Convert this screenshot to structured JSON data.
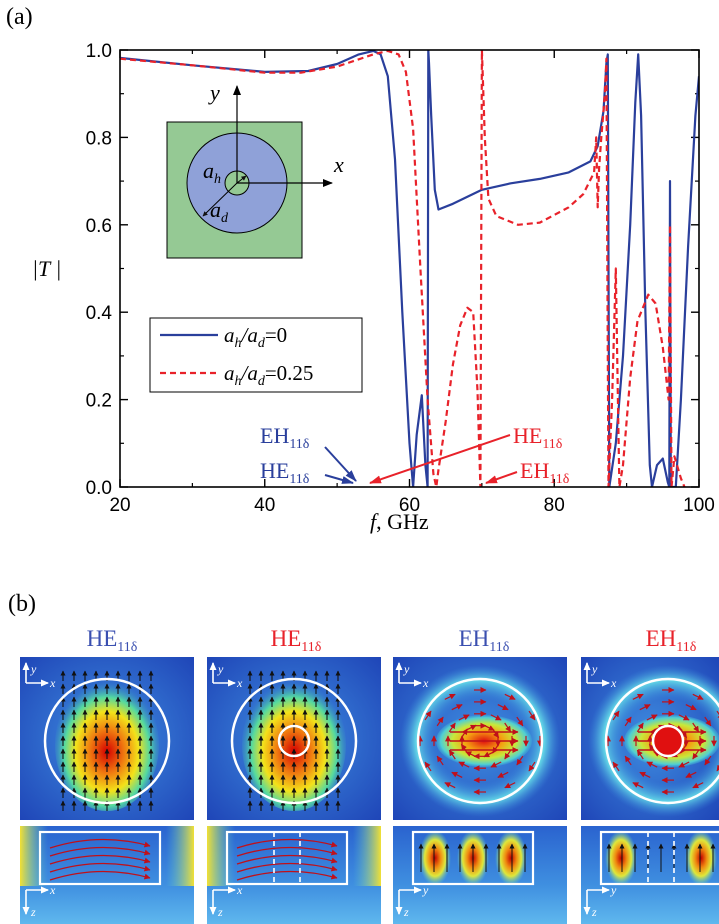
{
  "panel_a": {
    "label": "(a)",
    "chart_data": {
      "type": "line",
      "xlabel_italic": "f",
      "xlabel_rest": ", GHz",
      "ylabel": "|T |",
      "xlim": [
        20,
        100
      ],
      "ylim": [
        0,
        1.0
      ],
      "x_ticks": [
        "20",
        "40",
        "60",
        "80",
        "100"
      ],
      "y_ticks": [
        "0.0",
        "0.2",
        "0.4",
        "0.6",
        "0.8",
        "1.0"
      ],
      "series": [
        {
          "name": "a_h/a_d=0",
          "color": "#2a3f9c",
          "style": "solid",
          "points": [
            [
              20,
              0.982
            ],
            [
              30,
              0.965
            ],
            [
              40,
              0.95
            ],
            [
              46,
              0.952
            ],
            [
              50,
              0.968
            ],
            [
              53,
              0.99
            ],
            [
              55,
              0.998
            ],
            [
              56,
              0.99
            ],
            [
              57,
              0.94
            ],
            [
              58,
              0.75
            ],
            [
              59,
              0.4
            ],
            [
              60,
              0.1
            ],
            [
              60.5,
              0.0
            ],
            [
              61,
              0.12
            ],
            [
              61.7,
              0.21
            ],
            [
              62.2,
              0.05
            ],
            [
              62.5,
              0.0
            ],
            [
              62.6,
              1.0
            ],
            [
              62.7,
              0.97
            ],
            [
              63.0,
              0.85
            ],
            [
              63.5,
              0.68
            ],
            [
              64,
              0.635
            ],
            [
              66,
              0.648
            ],
            [
              70,
              0.68
            ],
            [
              74,
              0.695
            ],
            [
              78,
              0.705
            ],
            [
              82,
              0.72
            ],
            [
              85,
              0.745
            ],
            [
              86,
              0.78
            ],
            [
              86.8,
              0.86
            ],
            [
              87.2,
              0.97
            ],
            [
              87.4,
              0.99
            ],
            [
              87.5,
              0.5
            ],
            [
              87.6,
              0.0
            ],
            [
              88.5,
              0.1
            ],
            [
              89.5,
              0.3
            ],
            [
              90.5,
              0.6
            ],
            [
              91.2,
              0.88
            ],
            [
              91.6,
              0.99
            ],
            [
              92,
              0.85
            ],
            [
              92.6,
              0.4
            ],
            [
              93.2,
              0.05
            ],
            [
              93.5,
              0.0
            ],
            [
              94.2,
              0.05
            ],
            [
              95,
              0.065
            ],
            [
              95.7,
              0.01
            ],
            [
              95.9,
              0.0
            ],
            [
              96.0,
              0.7
            ],
            [
              96.1,
              0.0
            ],
            [
              96.8,
              0.0
            ],
            [
              97.5,
              0.2
            ],
            [
              98.5,
              0.55
            ],
            [
              99.5,
              0.85
            ],
            [
              100,
              0.94
            ]
          ]
        },
        {
          "name": "a_h/a_d=0.25",
          "color": "#e8222a",
          "style": "dashed",
          "points": [
            [
              20,
              0.98
            ],
            [
              30,
              0.965
            ],
            [
              40,
              0.948
            ],
            [
              45,
              0.948
            ],
            [
              50,
              0.962
            ],
            [
              55,
              0.99
            ],
            [
              57,
              0.998
            ],
            [
              58.5,
              0.99
            ],
            [
              59.5,
              0.95
            ],
            [
              60.5,
              0.82
            ],
            [
              61.5,
              0.5
            ],
            [
              62.5,
              0.2
            ],
            [
              63.3,
              0.03
            ],
            [
              63.7,
              0.0
            ],
            [
              64,
              0.04
            ],
            [
              65,
              0.15
            ],
            [
              66,
              0.28
            ],
            [
              67,
              0.37
            ],
            [
              68,
              0.41
            ],
            [
              68.8,
              0.4
            ],
            [
              69.4,
              0.22
            ],
            [
              69.8,
              0.0
            ],
            [
              70.0,
              1.0
            ],
            [
              70.4,
              0.8
            ],
            [
              70.9,
              0.66
            ],
            [
              72,
              0.62
            ],
            [
              75,
              0.6
            ],
            [
              78,
              0.605
            ],
            [
              82,
              0.64
            ],
            [
              84,
              0.67
            ],
            [
              85.5,
              0.72
            ],
            [
              85.8,
              0.8
            ],
            [
              86.0,
              0.64
            ],
            [
              86.2,
              0.73
            ],
            [
              86.5,
              0.8
            ],
            [
              87.0,
              0.9
            ],
            [
              87.2,
              0.98
            ],
            [
              87.4,
              0.3
            ],
            [
              87.5,
              0.0
            ],
            [
              88.0,
              0.2
            ],
            [
              88.5,
              0.5
            ],
            [
              88.8,
              0.2
            ],
            [
              89.0,
              0.0
            ],
            [
              89.5,
              0.05
            ],
            [
              90.5,
              0.25
            ],
            [
              91.5,
              0.38
            ],
            [
              93,
              0.44
            ],
            [
              94,
              0.42
            ],
            [
              95,
              0.32
            ],
            [
              95.8,
              0.2
            ],
            [
              96.0,
              0.6
            ],
            [
              96.2,
              0.0
            ],
            [
              96.6,
              0.07
            ],
            [
              97.5,
              0.02
            ],
            [
              98,
              0.0
            ]
          ]
        }
      ],
      "legend": {
        "placement": "lower-left",
        "entries": [
          {
            "ratio_a": "a",
            "sub_a": "h",
            "ratio_b": "a",
            "sub_b": "d",
            "value": "=0"
          },
          {
            "ratio_a": "a",
            "sub_a": "h",
            "ratio_b": "a",
            "sub_b": "d",
            "value": "=0.25"
          }
        ]
      },
      "annotations": {
        "blue_top": {
          "main": "EH",
          "sub": "11δ"
        },
        "blue_bottom": {
          "main": "HE",
          "sub": "11δ"
        },
        "red_top": {
          "main": "HE",
          "sub": "11δ"
        },
        "red_bottom": {
          "main": "EH",
          "sub": "11δ"
        }
      },
      "inset": {
        "x_axis": "x",
        "y_axis": "y",
        "r_inner": {
          "main": "a",
          "sub": "h"
        },
        "r_outer": {
          "main": "a",
          "sub": "d"
        },
        "fill_square": "#95c994",
        "fill_disk": "#8fa1d8"
      }
    }
  },
  "panel_b": {
    "label": "(b)",
    "modes": [
      {
        "main": "HE",
        "sub": "11δ",
        "color": "#3a4fb0"
      },
      {
        "main": "HE",
        "sub": "11δ",
        "color": "#e8222a"
      },
      {
        "main": "EH",
        "sub": "11δ",
        "color": "#3a4fb0"
      },
      {
        "main": "EH",
        "sub": "11δ",
        "color": "#e8222a"
      }
    ],
    "top_axes": {
      "a": "y",
      "b": "x"
    },
    "bottom_axes": [
      {
        "a": "z",
        "b": "x"
      },
      {
        "a": "z",
        "b": "x"
      },
      {
        "a": "z",
        "b": "y"
      },
      {
        "a": "z",
        "b": "y"
      }
    ]
  }
}
